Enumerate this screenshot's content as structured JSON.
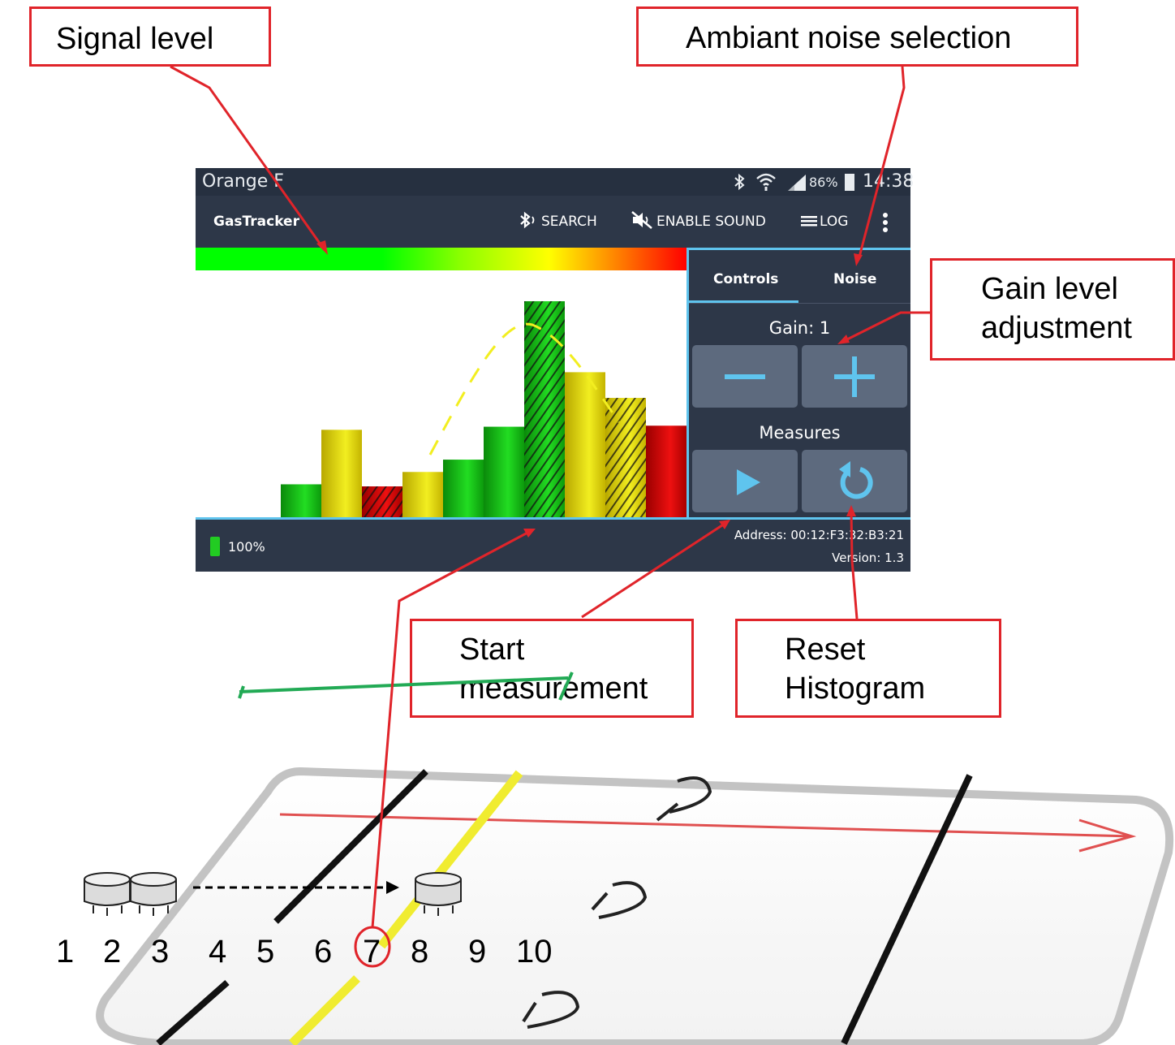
{
  "callouts": {
    "signal_level": "Signal level",
    "ambient_noise": "Ambiant noise selection",
    "gain_level": "Gain level\nadjustment",
    "start_measurement": "Start\nmeasurement",
    "reset_histogram": "Reset\nHistogram"
  },
  "status_bar": {
    "carrier": "Orange F",
    "battery": "86%",
    "time": "14:38"
  },
  "action_bar": {
    "app_title": "GasTracker",
    "search_label": "SEARCH",
    "sound_label": "ENABLE SOUND",
    "log_label": "LOG"
  },
  "side_panel": {
    "tabs": [
      "Controls",
      "Noise"
    ],
    "active_tab": "Controls",
    "gain_label": "Gain: 1",
    "measures_label": "Measures"
  },
  "bottom_bar": {
    "device_battery": "100%",
    "address": "Address:  00:12:F3:32:B3:21",
    "version": "Version:  1.3"
  },
  "chart_data": {
    "type": "bar",
    "values": [
      32,
      85,
      30,
      44,
      56,
      88,
      210,
      141,
      116,
      89
    ],
    "colors": [
      "green",
      "yellow",
      "red",
      "yellow",
      "green",
      "green",
      "green",
      "yellow",
      "yellow",
      "red"
    ],
    "hatched": [
      false,
      false,
      true,
      false,
      false,
      false,
      true,
      false,
      true,
      false
    ],
    "ylim": [
      0,
      240
    ]
  },
  "sensor_positions": [
    "1",
    "2",
    "3",
    "4",
    "5",
    "6",
    "7",
    "8",
    "9",
    "10"
  ],
  "colors": {
    "accent": "#5fc4ee",
    "callout_border": "#e0242a",
    "panel_bg": "#2d3748",
    "button_bg": "#5d6a7e"
  },
  "icons": [
    "bluetooth-icon",
    "wifi-icon",
    "signal-icon",
    "battery-icon",
    "bluetooth-search-icon",
    "sound-mute-icon",
    "log-list-icon",
    "overflow-menu-icon",
    "minus-icon",
    "plus-icon",
    "play-icon",
    "reset-icon",
    "device-battery-icon"
  ]
}
